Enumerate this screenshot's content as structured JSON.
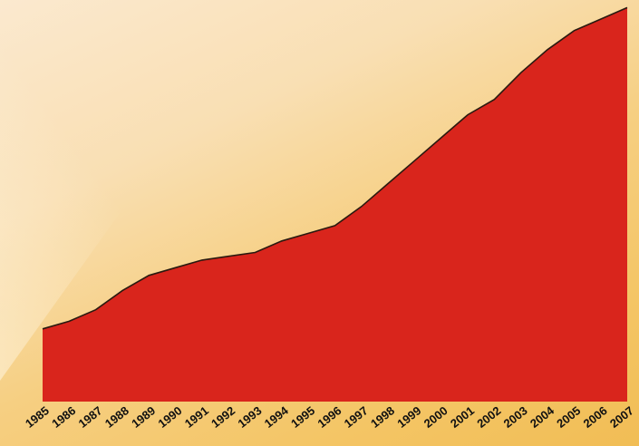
{
  "chart_data": {
    "type": "area",
    "title": "",
    "xlabel": "",
    "ylabel": "",
    "categories": [
      "1985",
      "1986",
      "1987",
      "1988",
      "1989",
      "1990",
      "1991",
      "1992",
      "1993",
      "1994",
      "1995",
      "1996",
      "1997",
      "1998",
      "1999",
      "2000",
      "2001",
      "2002",
      "2003",
      "2004",
      "2005",
      "2006",
      "2007"
    ],
    "series": [
      {
        "values": [
          19,
          21,
          24,
          29,
          33,
          35,
          37,
          38,
          39,
          42,
          44,
          46,
          51,
          57,
          63,
          69,
          75,
          79,
          86,
          92,
          97,
          100,
          103
        ]
      }
    ],
    "ylim": [
      0,
      105
    ],
    "grid": false,
    "legend": "none",
    "y_axis_visible": false,
    "colors": {
      "area_fill": "#d9251c",
      "area_stroke": "#2a1a10",
      "tick_text": "#111111"
    }
  }
}
